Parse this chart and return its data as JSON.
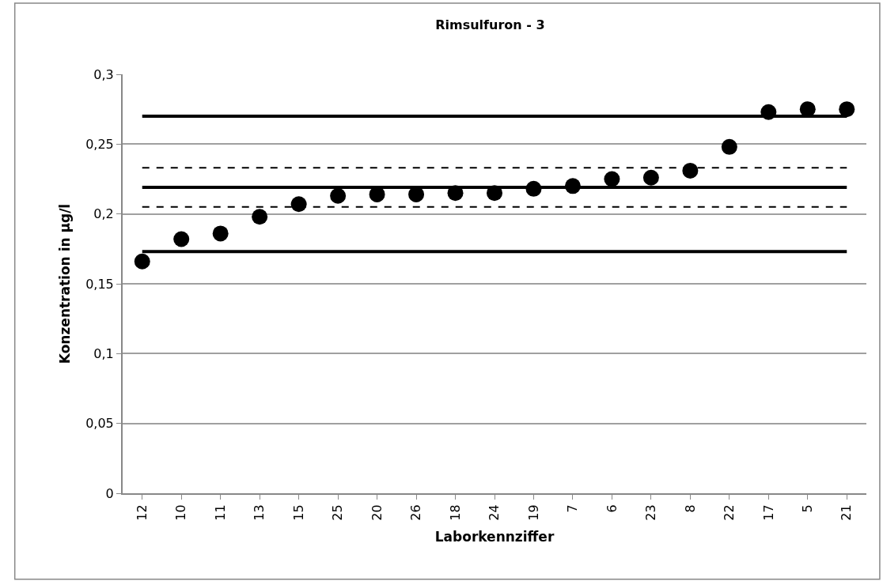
{
  "chart_data": {
    "type": "scatter",
    "title": "Rimsulfuron - 3",
    "xlabel": "Laborkennziffer",
    "ylabel": "Konzentration in µg/l",
    "categories": [
      "12",
      "10",
      "11",
      "13",
      "15",
      "25",
      "20",
      "26",
      "18",
      "24",
      "19",
      "7",
      "6",
      "23",
      "8",
      "22",
      "17",
      "5",
      "21"
    ],
    "series": [
      {
        "color": "#000000",
        "values": [
          0.166,
          0.182,
          0.186,
          0.198,
          0.207,
          0.213,
          0.214,
          0.214,
          0.215,
          0.215,
          0.218,
          0.22,
          0.225,
          0.226,
          0.231,
          0.248,
          0.273,
          0.275,
          0.275
        ]
      }
    ],
    "marker": "circle",
    "ylim": [
      0,
      0.3
    ],
    "yticks": [
      {
        "value": 0,
        "label": "0"
      },
      {
        "value": 0.05,
        "label": "0,05"
      },
      {
        "value": 0.1,
        "label": "0,1"
      },
      {
        "value": 0.15,
        "label": "0,15"
      },
      {
        "value": 0.2,
        "label": "0,2"
      },
      {
        "value": 0.25,
        "label": "0,25"
      },
      {
        "value": 0.3,
        "label": "0,3"
      }
    ],
    "grid": "y",
    "ref_lines": [
      {
        "axis": "y",
        "value": 0.27,
        "color": "#000000",
        "line_style": "solid"
      },
      {
        "axis": "y",
        "value": 0.233,
        "color": "#000000",
        "line_style": "dashed"
      },
      {
        "axis": "y",
        "value": 0.219,
        "color": "#000000",
        "line_style": "solid"
      },
      {
        "axis": "y",
        "value": 0.205,
        "color": "#000000",
        "line_style": "dashed"
      },
      {
        "axis": "y",
        "value": 0.173,
        "color": "#000000",
        "line_style": "solid"
      }
    ]
  }
}
